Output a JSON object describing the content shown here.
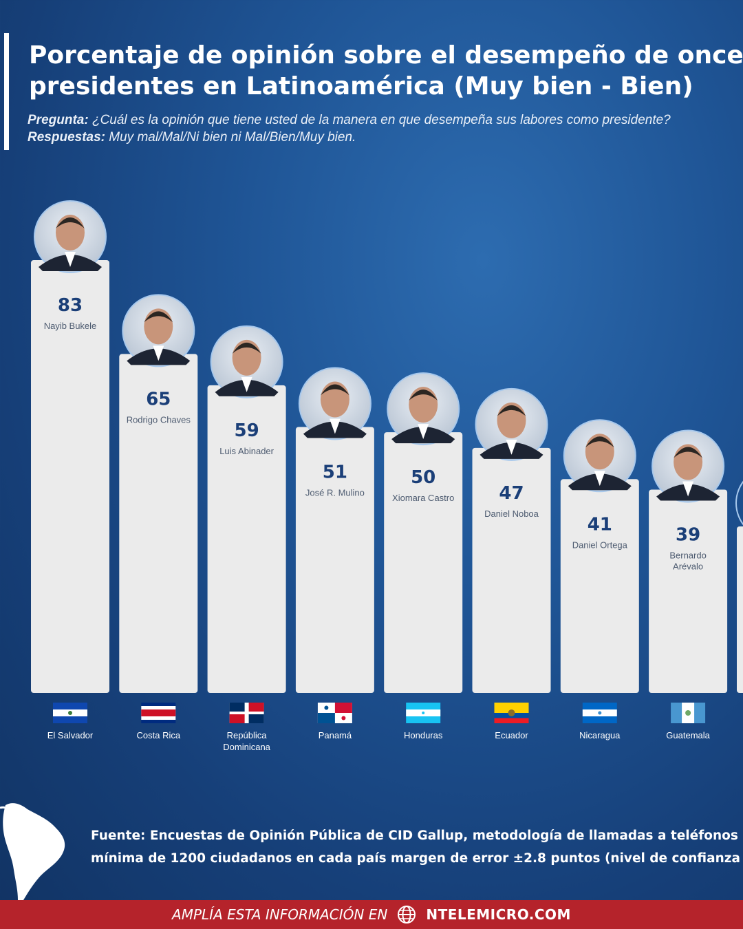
{
  "header": {
    "title": "Porcentaje de opinión sobre el desempeño de once\npresidentes en Latinoamérica (Muy bien - Bien)",
    "question_label": "Pregunta:",
    "question_text": " ¿Cuál es la opinión que tiene usted de la manera en que desempeña sus labores como presidente?",
    "answers_label": " Respuestas:",
    "answers_text": " Muy mal/Mal/Ni bien ni Mal/Bien/Muy bien."
  },
  "chart_data": {
    "type": "bar",
    "title": "Porcentaje de opinión sobre el desempeño de once presidentes en Latinoamérica (Muy bien - Bien)",
    "categories": [
      "El Salvador",
      "Costa Rica",
      "República Dominicana",
      "Panamá",
      "Honduras",
      "Ecuador",
      "Nicaragua",
      "Guatemala"
    ],
    "series": [
      {
        "values": [
          83,
          65,
          59,
          51,
          50,
          47,
          41,
          39
        ]
      }
    ],
    "president_names": [
      "Nayib Bukele",
      "Rodrigo Chaves",
      "Luis Abinader",
      "José R. Mulino",
      "Xiomara Castro",
      "Daniel Noboa",
      "Daniel Ortega",
      "Bernardo Arévalo"
    ],
    "flags": [
      "flag-el-salvador",
      "flag-costa-rica",
      "flag-dominican-republic",
      "flag-panama",
      "flag-honduras",
      "flag-ecuador",
      "flag-nicaragua",
      "flag-guatemala"
    ],
    "colors": {
      "bar": "#ebebeb",
      "value": "#1b3f78",
      "name": "#4d5b70",
      "portrait_ring": "#a7c8ec",
      "accent": "#b5232b"
    },
    "ylim": [
      0,
      83
    ],
    "grid": false,
    "legend": "none"
  },
  "source": {
    "label": "Fuente:",
    "line1": " Encuestas de Opinión Pública de CID Gallup, metodología de llamadas a teléfonos",
    "line2": "mínima de 1200 ciudadanos en cada país margen de error ±2.8 puntos (nivel de confianza"
  },
  "footer": {
    "prefix": "AMPLÍA ESTA INFORMACIÓN EN",
    "icon": "globe-icon",
    "site": "NTELEMICRO.COM"
  }
}
